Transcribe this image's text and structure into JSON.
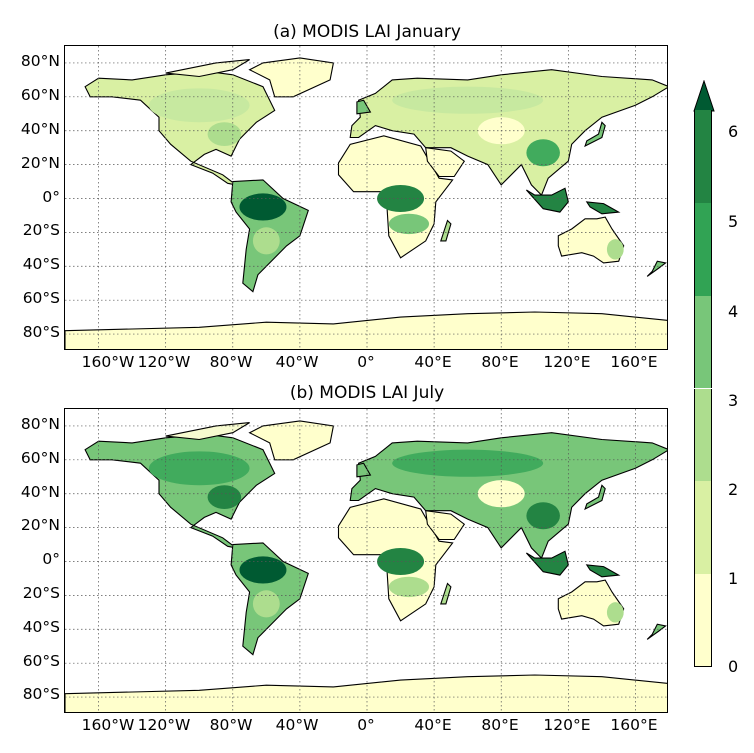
{
  "panels": [
    {
      "id": "a",
      "title": "(a)   MODIS LAI  January"
    },
    {
      "id": "b",
      "title": "(b)   MODIS LAI  July"
    }
  ],
  "axes": {
    "lat_ticks": [
      "80°N",
      "60°N",
      "40°N",
      "20°N",
      "0°",
      "20°S",
      "40°S",
      "60°S",
      "80°S"
    ],
    "lon_ticks": [
      "160°W",
      "120°W",
      "80°W",
      "40°W",
      "0°",
      "40°E",
      "80°E",
      "120°E",
      "160°E"
    ]
  },
  "colorbar": {
    "ticks": [
      "0",
      "1",
      "2",
      "3",
      "4",
      "5",
      "6"
    ],
    "colors": [
      "#ffffcc",
      "#d9f0a3",
      "#addd8e",
      "#78c679",
      "#31a354",
      "#238443",
      "#005a32"
    ],
    "extend": "max"
  },
  "colors": {
    "ocean": "#ffffff",
    "land_low": "#f7f7c6",
    "land_mid": "#c7e9a0",
    "land_high": "#41ab5d",
    "land_dense": "#006837",
    "grid": "#555555",
    "coast": "#000000"
  }
}
